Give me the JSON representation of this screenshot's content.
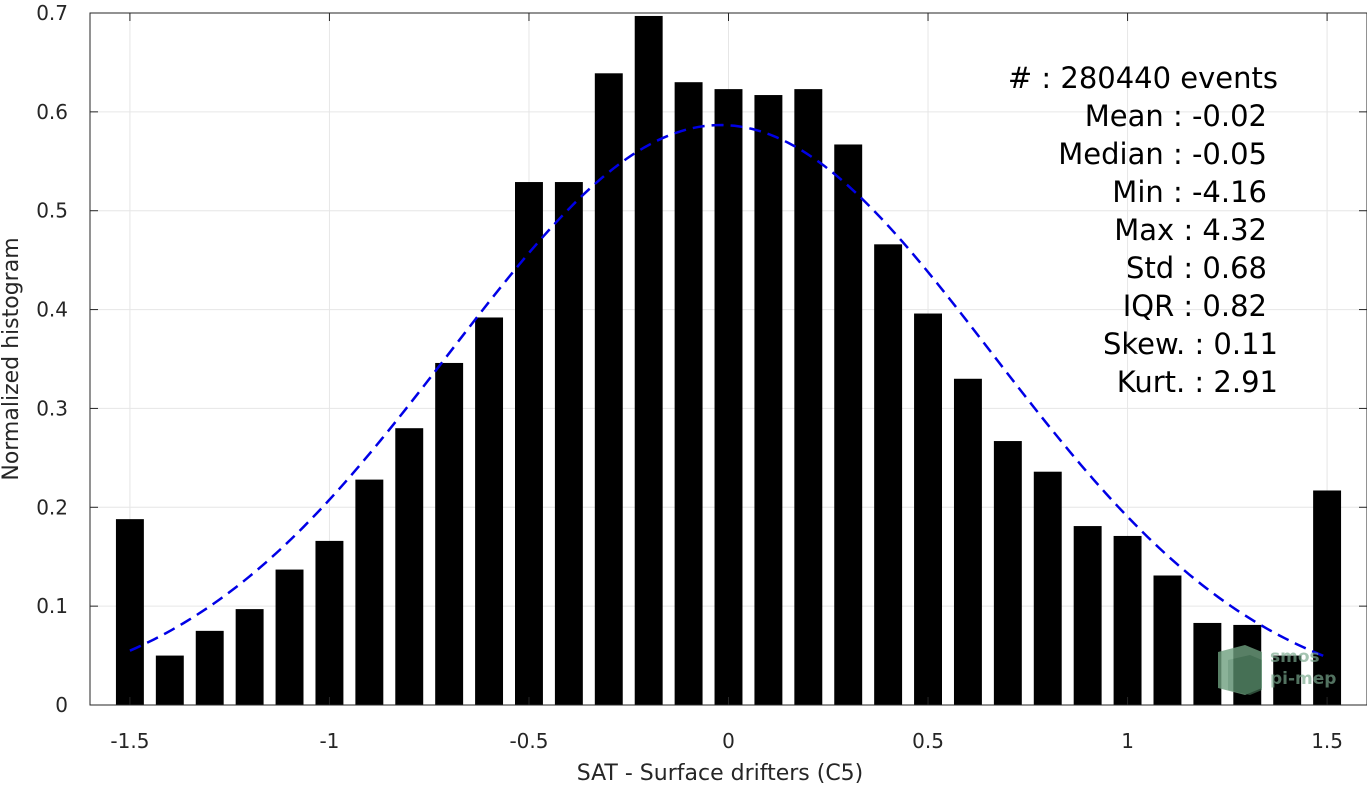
{
  "chart_data": {
    "type": "bar",
    "xlabel": "SAT - Surface drifters (C5)",
    "ylabel": "Normalized histogram",
    "xlim": [
      -1.6,
      1.6
    ],
    "ylim": [
      0,
      0.7
    ],
    "grid": true,
    "x_ticks": [
      -1.5,
      -1,
      -0.5,
      0,
      0.5,
      1,
      1.5
    ],
    "x_tick_labels": [
      "-1.5",
      "-1",
      "-0.5",
      "0",
      "0.5",
      "1",
      "1.5"
    ],
    "y_ticks": [
      0,
      0.1,
      0.2,
      0.3,
      0.4,
      0.5,
      0.6,
      0.7
    ],
    "y_tick_labels": [
      "0",
      "0.1",
      "0.2",
      "0.3",
      "0.4",
      "0.5",
      "0.6",
      "0.7"
    ],
    "bar_color": "#000000",
    "bar_width": 0.07,
    "bars": {
      "x": [
        -1.5,
        -1.4,
        -1.3,
        -1.2,
        -1.1,
        -1.0,
        -0.9,
        -0.8,
        -0.7,
        -0.6,
        -0.5,
        -0.4,
        -0.3,
        -0.2,
        -0.1,
        0.0,
        0.1,
        0.2,
        0.3,
        0.4,
        0.5,
        0.6,
        0.7,
        0.8,
        0.9,
        1.0,
        1.1,
        1.2,
        1.3,
        1.4,
        1.5
      ],
      "values": [
        0.188,
        0.05,
        0.075,
        0.097,
        0.137,
        0.166,
        0.228,
        0.28,
        0.346,
        0.392,
        0.529,
        0.529,
        0.639,
        0.697,
        0.63,
        0.623,
        0.617,
        0.623,
        0.567,
        0.466,
        0.396,
        0.33,
        0.267,
        0.236,
        0.181,
        0.171,
        0.131,
        0.083,
        0.081,
        0.05,
        0.217
      ]
    },
    "fit": {
      "style": "dashed",
      "color": "#0000e6",
      "mean": -0.02,
      "std": 0.68,
      "x_range": [
        -1.5,
        1.5
      ]
    },
    "annotations": [
      "#  : 280440 events",
      "Mean : -0.02",
      "Median : -0.05",
      "Min : -4.16",
      "Max : 4.32",
      "Std : 0.68",
      "IQR : 0.82",
      "Skew. : 0.11",
      "Kurt. : 2.91"
    ],
    "watermark": [
      "smos",
      "pi-mep"
    ]
  }
}
